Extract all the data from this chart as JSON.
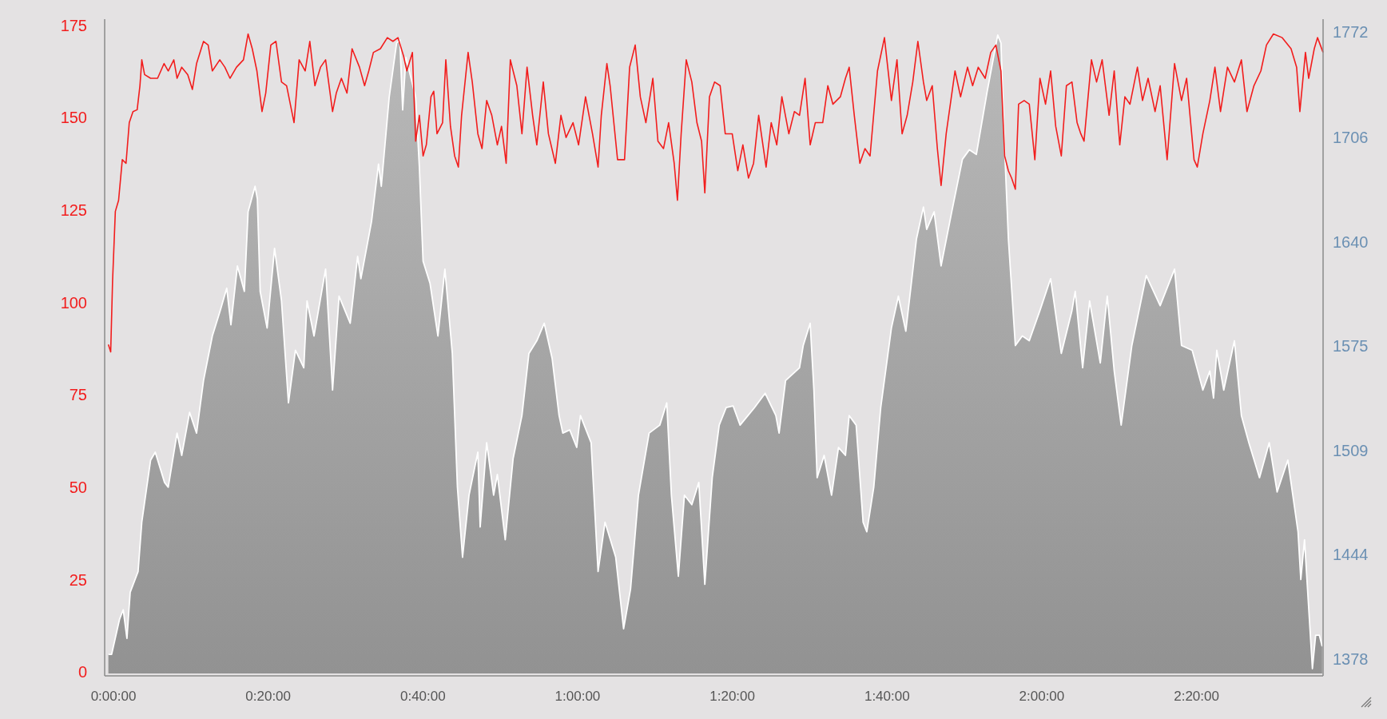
{
  "chart_data": {
    "type": "line",
    "xlim": [
      -0.019,
      2.606
    ],
    "ylim": [
      0,
      177
    ],
    "y2lim": [
      1370,
      1781
    ],
    "xticks": [
      {
        "value": 0,
        "label": "0:00:00"
      },
      {
        "value": 0.3333,
        "label": "0:20:00"
      },
      {
        "value": 0.6667,
        "label": "0:40:00"
      },
      {
        "value": 1,
        "label": "1:00:00"
      },
      {
        "value": 1.3333,
        "label": "1:20:00"
      },
      {
        "value": 1.6667,
        "label": "1:40:00"
      },
      {
        "value": 2,
        "label": "2:00:00"
      },
      {
        "value": 2.3333,
        "label": "2:20:00"
      }
    ],
    "yticks": [
      0,
      25,
      50,
      75,
      100,
      125,
      150,
      175
    ],
    "y2ticks": [
      1378,
      1444,
      1509,
      1575,
      1640,
      1706,
      1772
    ],
    "grid": false,
    "series": [
      {
        "type": "area",
        "axis": "y2",
        "color": "#a3a3a3",
        "x": [
          -0.011,
          -0.004,
          0.013,
          0.021,
          0.029,
          0.036,
          0.053,
          0.061,
          0.08,
          0.09,
          0.11,
          0.118,
          0.137,
          0.147,
          0.164,
          0.179,
          0.194,
          0.213,
          0.23,
          0.244,
          0.253,
          0.267,
          0.282,
          0.29,
          0.305,
          0.31,
          0.316,
          0.331,
          0.347,
          0.362,
          0.377,
          0.392,
          0.41,
          0.417,
          0.432,
          0.457,
          0.472,
          0.486,
          0.51,
          0.526,
          0.533,
          0.556,
          0.571,
          0.577,
          0.594,
          0.61,
          0.617,
          0.623,
          0.63,
          0.651,
          0.659,
          0.667,
          0.682,
          0.699,
          0.714,
          0.73,
          0.741,
          0.752,
          0.766,
          0.785,
          0.79,
          0.804,
          0.819,
          0.827,
          0.844,
          0.861,
          0.88,
          0.895,
          0.912,
          0.928,
          0.945,
          0.96,
          0.968,
          0.983,
          0.998,
          1.006,
          1.029,
          1.044,
          1.059,
          1.082,
          1.099,
          1.114,
          1.131,
          1.154,
          1.177,
          1.192,
          1.202,
          1.217,
          1.23,
          1.246,
          1.261,
          1.274,
          1.29,
          1.305,
          1.32,
          1.335,
          1.35,
          1.381,
          1.404,
          1.427,
          1.434,
          1.448,
          1.478,
          1.486,
          1.501,
          1.509,
          1.516,
          1.531,
          1.547,
          1.562,
          1.577,
          1.585,
          1.6,
          1.615,
          1.623,
          1.638,
          1.653,
          1.676,
          1.691,
          1.707,
          1.73,
          1.745,
          1.752,
          1.768,
          1.783,
          1.806,
          1.829,
          1.844,
          1.859,
          1.882,
          1.905,
          1.912,
          1.92,
          1.928,
          1.943,
          1.958,
          1.973,
          1.996,
          2.019,
          2.042,
          2.065,
          2.072,
          2.088,
          2.103,
          2.126,
          2.141,
          2.156,
          2.171,
          2.194,
          2.225,
          2.255,
          2.286,
          2.301,
          2.324,
          2.347,
          2.362,
          2.37,
          2.377,
          2.392,
          2.415,
          2.43,
          2.446,
          2.469,
          2.49,
          2.507,
          2.53,
          2.552,
          2.558,
          2.566,
          2.583,
          2.59,
          2.598,
          2.604
        ],
        "values": [
          1382,
          1382,
          1404,
          1410,
          1392,
          1421,
          1434,
          1465,
          1504,
          1509,
          1490,
          1487,
          1521,
          1507,
          1534,
          1521,
          1554,
          1582,
          1598,
          1612,
          1589,
          1626,
          1610,
          1660,
          1676,
          1668,
          1610,
          1587,
          1637,
          1604,
          1540,
          1573,
          1562,
          1604,
          1582,
          1624,
          1548,
          1607,
          1590,
          1632,
          1618,
          1654,
          1690,
          1676,
          1732,
          1766,
          1768,
          1724,
          1757,
          1732,
          1688,
          1629,
          1615,
          1582,
          1624,
          1571,
          1487,
          1443,
          1482,
          1509,
          1462,
          1515,
          1482,
          1495,
          1454,
          1505,
          1532,
          1571,
          1579,
          1590,
          1568,
          1532,
          1521,
          1523,
          1512,
          1532,
          1515,
          1434,
          1465,
          1443,
          1398,
          1423,
          1482,
          1521,
          1526,
          1540,
          1482,
          1431,
          1482,
          1476,
          1490,
          1426,
          1493,
          1526,
          1537,
          1538,
          1526,
          1537,
          1546,
          1532,
          1521,
          1554,
          1562,
          1576,
          1590,
          1548,
          1493,
          1507,
          1482,
          1512,
          1507,
          1532,
          1526,
          1465,
          1459,
          1487,
          1537,
          1587,
          1607,
          1585,
          1643,
          1663,
          1649,
          1660,
          1626,
          1660,
          1693,
          1699,
          1696,
          1735,
          1771,
          1766,
          1699,
          1643,
          1576,
          1582,
          1579,
          1598,
          1618,
          1571,
          1598,
          1610,
          1562,
          1604,
          1565,
          1607,
          1560,
          1526,
          1576,
          1620,
          1601,
          1624,
          1576,
          1573,
          1548,
          1560,
          1543,
          1573,
          1548,
          1579,
          1532,
          1515,
          1493,
          1515,
          1484,
          1504,
          1459,
          1429,
          1454,
          1373,
          1394,
          1394,
          1387
        ]
      },
      {
        "axis": "y",
        "color": "#f21d1d",
        "x": [
          -0.011,
          -0.006,
          -0.002,
          0.004,
          0.011,
          0.019,
          0.027,
          0.034,
          0.042,
          0.051,
          0.057,
          0.061,
          0.067,
          0.08,
          0.095,
          0.109,
          0.118,
          0.13,
          0.137,
          0.147,
          0.16,
          0.17,
          0.179,
          0.194,
          0.204,
          0.213,
          0.229,
          0.24,
          0.251,
          0.265,
          0.28,
          0.29,
          0.299,
          0.309,
          0.32,
          0.328,
          0.339,
          0.35,
          0.362,
          0.373,
          0.389,
          0.4,
          0.413,
          0.423,
          0.434,
          0.446,
          0.457,
          0.472,
          0.48,
          0.491,
          0.503,
          0.514,
          0.53,
          0.541,
          0.55,
          0.56,
          0.575,
          0.59,
          0.602,
          0.613,
          0.625,
          0.632,
          0.644,
          0.651,
          0.659,
          0.667,
          0.674,
          0.684,
          0.69,
          0.697,
          0.709,
          0.716,
          0.726,
          0.735,
          0.743,
          0.75,
          0.764,
          0.773,
          0.785,
          0.794,
          0.804,
          0.815,
          0.827,
          0.836,
          0.846,
          0.855,
          0.869,
          0.88,
          0.891,
          0.903,
          0.912,
          0.926,
          0.937,
          0.952,
          0.964,
          0.975,
          0.99,
          1.002,
          1.017,
          1.032,
          1.044,
          1.051,
          1.063,
          1.07,
          1.086,
          1.101,
          1.112,
          1.124,
          1.135,
          1.147,
          1.162,
          1.173,
          1.185,
          1.196,
          1.208,
          1.215,
          1.223,
          1.234,
          1.246,
          1.257,
          1.267,
          1.274,
          1.284,
          1.295,
          1.307,
          1.318,
          1.333,
          1.345,
          1.356,
          1.368,
          1.379,
          1.39,
          1.406,
          1.417,
          1.429,
          1.44,
          1.455,
          1.467,
          1.478,
          1.49,
          1.501,
          1.512,
          1.528,
          1.539,
          1.55,
          1.566,
          1.577,
          1.585,
          1.596,
          1.608,
          1.619,
          1.63,
          1.646,
          1.661,
          1.676,
          1.688,
          1.699,
          1.71,
          1.722,
          1.733,
          1.745,
          1.752,
          1.764,
          1.775,
          1.783,
          1.794,
          1.813,
          1.825,
          1.84,
          1.851,
          1.863,
          1.878,
          1.89,
          1.901,
          1.912,
          1.92,
          1.928,
          1.935,
          1.943,
          1.95,
          1.962,
          1.973,
          1.985,
          1.996,
          2.008,
          2.019,
          2.03,
          2.042,
          2.053,
          2.065,
          2.076,
          2.084,
          2.091,
          2.107,
          2.118,
          2.13,
          2.145,
          2.156,
          2.168,
          2.179,
          2.19,
          2.206,
          2.217,
          2.229,
          2.244,
          2.255,
          2.27,
          2.286,
          2.301,
          2.312,
          2.328,
          2.335,
          2.347,
          2.362,
          2.373,
          2.385,
          2.4,
          2.415,
          2.43,
          2.442,
          2.457,
          2.472,
          2.484,
          2.499,
          2.518,
          2.537,
          2.549,
          2.556,
          2.568,
          2.575,
          2.587,
          2.594,
          2.606
        ],
        "values": [
          89,
          87,
          106,
          125,
          128,
          139,
          138,
          149,
          152,
          152.5,
          159,
          166,
          162,
          161,
          161,
          165,
          163,
          166,
          161,
          164,
          162,
          158,
          165,
          171,
          170,
          163,
          166,
          164,
          161,
          164,
          166,
          173,
          169,
          163,
          152,
          157,
          170,
          171,
          160,
          159,
          149,
          166,
          163,
          171,
          159,
          164,
          166,
          152,
          157,
          161,
          157,
          169,
          164,
          159,
          163,
          168,
          169,
          172,
          171,
          172,
          167,
          163,
          168,
          144,
          151,
          140,
          143,
          156,
          157.5,
          146,
          149,
          166,
          148,
          140,
          137,
          151,
          168,
          160,
          146,
          142,
          155,
          151,
          143,
          148,
          138,
          166,
          159,
          146,
          164,
          151,
          143,
          160,
          146,
          138,
          151,
          145,
          149,
          143,
          156,
          146,
          137,
          151,
          165,
          159,
          139,
          139,
          164,
          170,
          156,
          149,
          161,
          144,
          142,
          149,
          138,
          128,
          146,
          166,
          160,
          149,
          144,
          130,
          156,
          160,
          159,
          146,
          146,
          136,
          143,
          134,
          138,
          151,
          137,
          149,
          143,
          156,
          146,
          152,
          151,
          161,
          143,
          149,
          149,
          159,
          154,
          156,
          161,
          164,
          151,
          138,
          142,
          140,
          163,
          172,
          155,
          166,
          146,
          151,
          160,
          171,
          160,
          155,
          159,
          142,
          132,
          146,
          163,
          156,
          164,
          159,
          164,
          161,
          168,
          170,
          163,
          140,
          136,
          134,
          131,
          154,
          155,
          154,
          139,
          161,
          154,
          163,
          148,
          140,
          159,
          160,
          149,
          146,
          144,
          166,
          160,
          166,
          151,
          163,
          143,
          156,
          154,
          164,
          155,
          161,
          152,
          159,
          139,
          165,
          155,
          161,
          139,
          137,
          146,
          155,
          164,
          152,
          164,
          160,
          166,
          152,
          159,
          163,
          170,
          173,
          172,
          169,
          164,
          152,
          168,
          161,
          169,
          172,
          168
        ]
      }
    ]
  }
}
